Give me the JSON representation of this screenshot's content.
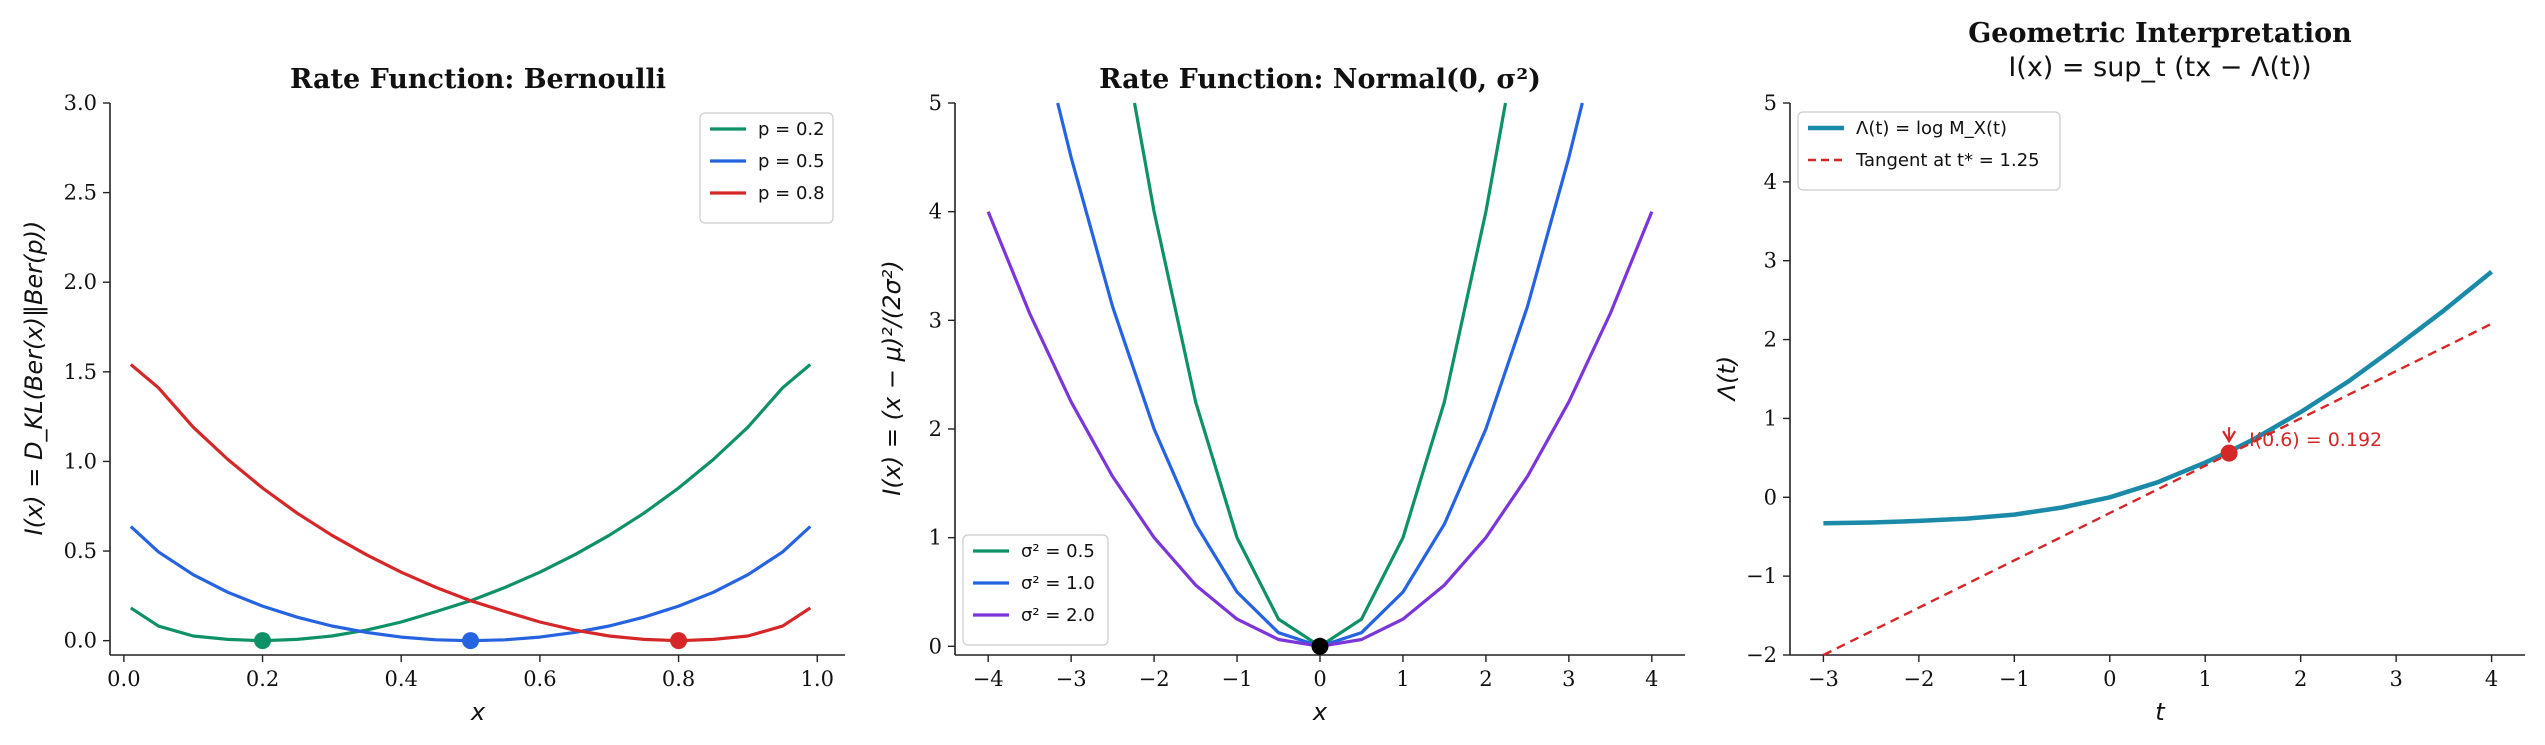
{
  "chart_data": [
    {
      "type": "line",
      "title": "Rate Function: Bernoulli",
      "xlabel": "x",
      "ylabel": "I(x) = D_KL(Ber(x)‖Ber(p))",
      "xlim": [
        -0.02,
        1.04
      ],
      "ylim": [
        -0.08,
        3.0
      ],
      "xticks": [
        0.0,
        0.2,
        0.4,
        0.6,
        0.8,
        1.0
      ],
      "xtick_labels": [
        "0.0",
        "0.2",
        "0.4",
        "0.6",
        "0.8",
        "1.0"
      ],
      "yticks": [
        0.0,
        0.5,
        1.0,
        1.5,
        2.0,
        2.5,
        3.0
      ],
      "ytick_labels": [
        "0.0",
        "0.5",
        "1.0",
        "1.5",
        "2.0",
        "2.5",
        "3.0"
      ],
      "legend_position": "top-right",
      "series": [
        {
          "name": "p = 0.2",
          "p": 0.2,
          "color": "#0f9168",
          "x": [
            0.01,
            0.05,
            0.1,
            0.15,
            0.2,
            0.25,
            0.3,
            0.35,
            0.4,
            0.45,
            0.5,
            0.55,
            0.6,
            0.65,
            0.7,
            0.75,
            0.8,
            0.85,
            0.9,
            0.95,
            0.99
          ],
          "y": [
            0.183,
            0.081,
            0.026,
            0.007,
            0.0,
            0.007,
            0.026,
            0.059,
            0.104,
            0.162,
            0.223,
            0.297,
            0.382,
            0.479,
            0.588,
            0.711,
            0.852,
            1.011,
            1.191,
            1.411,
            1.541
          ],
          "marker": {
            "x": 0.2,
            "y": 0.0
          }
        },
        {
          "name": "p = 0.5",
          "p": 0.5,
          "color": "#2563e0",
          "x": [
            0.01,
            0.05,
            0.1,
            0.15,
            0.2,
            0.25,
            0.3,
            0.35,
            0.4,
            0.45,
            0.5,
            0.55,
            0.6,
            0.65,
            0.7,
            0.75,
            0.8,
            0.85,
            0.9,
            0.95,
            0.99
          ],
          "y": [
            0.637,
            0.495,
            0.368,
            0.27,
            0.193,
            0.131,
            0.082,
            0.046,
            0.02,
            0.005,
            0.0,
            0.005,
            0.02,
            0.046,
            0.082,
            0.131,
            0.193,
            0.27,
            0.368,
            0.495,
            0.637
          ],
          "marker": {
            "x": 0.5,
            "y": 0.0
          }
        },
        {
          "name": "p = 0.8",
          "p": 0.8,
          "color": "#d62728",
          "x": [
            0.01,
            0.05,
            0.1,
            0.15,
            0.2,
            0.25,
            0.3,
            0.35,
            0.4,
            0.45,
            0.5,
            0.55,
            0.6,
            0.65,
            0.7,
            0.75,
            0.8,
            0.85,
            0.9,
            0.95,
            0.99
          ],
          "y": [
            1.541,
            1.411,
            1.191,
            1.011,
            0.852,
            0.711,
            0.588,
            0.479,
            0.382,
            0.297,
            0.223,
            0.162,
            0.104,
            0.059,
            0.026,
            0.007,
            0.0,
            0.007,
            0.026,
            0.081,
            0.183
          ],
          "marker": {
            "x": 0.8,
            "y": 0.0
          }
        }
      ]
    },
    {
      "type": "line",
      "title": "Rate Function: Normal(0, σ²)",
      "xlabel": "x",
      "ylabel": "I(x) = (x − μ)²/(2σ²)",
      "xlim": [
        -4.4,
        4.4
      ],
      "ylim": [
        -0.08,
        5.0
      ],
      "xticks": [
        -4,
        -3,
        -2,
        -1,
        0,
        1,
        2,
        3,
        4
      ],
      "xtick_labels": [
        "−4",
        "−3",
        "−2",
        "−1",
        "0",
        "1",
        "2",
        "3",
        "4"
      ],
      "yticks": [
        0,
        1,
        2,
        3,
        4,
        5
      ],
      "ytick_labels": [
        "0",
        "1",
        "2",
        "3",
        "4",
        "5"
      ],
      "legend_position": "bottom-left",
      "series": [
        {
          "name": "σ² = 0.5",
          "sigma2": 0.5,
          "color": "#0f9168",
          "x": [
            -2.236,
            -2.0,
            -1.5,
            -1.0,
            -0.5,
            0.0,
            0.5,
            1.0,
            1.5,
            2.0,
            2.236
          ],
          "y": [
            5.0,
            4.0,
            2.25,
            1.0,
            0.25,
            0.0,
            0.25,
            1.0,
            2.25,
            4.0,
            5.0
          ]
        },
        {
          "name": "σ² = 1.0",
          "sigma2": 1.0,
          "color": "#2563e0",
          "x": [
            -3.162,
            -3.0,
            -2.5,
            -2.0,
            -1.5,
            -1.0,
            -0.5,
            0.0,
            0.5,
            1.0,
            1.5,
            2.0,
            2.5,
            3.0,
            3.162
          ],
          "y": [
            5.0,
            4.5,
            3.125,
            2.0,
            1.125,
            0.5,
            0.125,
            0.0,
            0.125,
            0.5,
            1.125,
            2.0,
            3.125,
            4.5,
            5.0
          ]
        },
        {
          "name": "σ² = 2.0",
          "sigma2": 2.0,
          "color": "#7b35d8",
          "x": [
            -4.0,
            -3.5,
            -3.0,
            -2.5,
            -2.0,
            -1.5,
            -1.0,
            -0.5,
            0.0,
            0.5,
            1.0,
            1.5,
            2.0,
            2.5,
            3.0,
            3.5,
            4.0
          ],
          "y": [
            4.0,
            3.063,
            2.25,
            1.563,
            1.0,
            0.563,
            0.25,
            0.063,
            0.0,
            0.063,
            0.25,
            0.563,
            1.0,
            1.563,
            2.25,
            3.063,
            4.0
          ]
        }
      ],
      "point": {
        "x": 0,
        "y": 0,
        "color": "#000000"
      }
    },
    {
      "type": "line",
      "title": "Geometric Interpretation",
      "subtitle": "I(x) = sup_t (tx − Λ(t))",
      "xlabel": "t",
      "ylabel": "Λ(t)",
      "xlim": [
        -3.35,
        4.35
      ],
      "ylim": [
        -2.0,
        5.0
      ],
      "xticks": [
        -3,
        -2,
        -1,
        0,
        1,
        2,
        3,
        4
      ],
      "xtick_labels": [
        "−3",
        "−2",
        "−1",
        "0",
        "1",
        "2",
        "3",
        "4"
      ],
      "yticks": [
        -2,
        -1,
        0,
        1,
        2,
        3,
        4,
        5
      ],
      "ytick_labels": [
        "−2",
        "−1",
        "0",
        "1",
        "2",
        "3",
        "4",
        "5"
      ],
      "legend_position": "top-left",
      "series": [
        {
          "name": "Λ(t) = log M_X(t)",
          "style": "solid",
          "color": "#1a8aa8",
          "x": [
            -3.0,
            -2.5,
            -2.0,
            -1.5,
            -1.0,
            -0.5,
            0.0,
            0.5,
            1.0,
            1.25,
            1.5,
            2.0,
            2.5,
            3.0,
            3.5,
            4.0
          ],
          "y": [
            -0.33,
            -0.32,
            -0.3,
            -0.27,
            -0.22,
            -0.13,
            0.0,
            0.19,
            0.44,
            0.58,
            0.73,
            1.08,
            1.47,
            1.91,
            2.37,
            2.86
          ]
        },
        {
          "name": "Tangent at t* = 1.25",
          "style": "dashed",
          "color": "#d62728",
          "x": [
            -3.0,
            4.0
          ],
          "y": [
            -2.0,
            2.2
          ]
        }
      ],
      "point": {
        "x": 1.25,
        "y": 0.56,
        "color": "#d62728"
      },
      "annotation": {
        "text": "I(0.6) = 0.192",
        "color": "#d62728",
        "x": 1.25,
        "y": 0.56
      }
    }
  ]
}
